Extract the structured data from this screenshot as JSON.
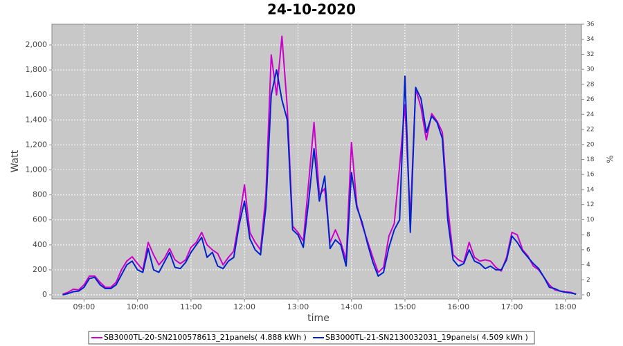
{
  "chart_data": {
    "type": "line",
    "title": "24-10-2020",
    "x_label": "time",
    "y_label": "Watt",
    "y2_label": "%",
    "x": [
      8.6,
      8.7,
      8.8,
      8.9,
      9.0,
      9.1,
      9.2,
      9.3,
      9.4,
      9.5,
      9.6,
      9.7,
      9.8,
      9.9,
      10.0,
      10.1,
      10.2,
      10.3,
      10.4,
      10.5,
      10.6,
      10.7,
      10.8,
      10.9,
      11.0,
      11.1,
      11.2,
      11.3,
      11.4,
      11.5,
      11.6,
      11.7,
      11.8,
      11.9,
      12.0,
      12.1,
      12.2,
      12.3,
      12.4,
      12.5,
      12.6,
      12.7,
      12.8,
      12.9,
      13.0,
      13.1,
      13.2,
      13.3,
      13.4,
      13.5,
      13.6,
      13.7,
      13.8,
      13.9,
      14.0,
      14.1,
      14.2,
      14.3,
      14.4,
      14.5,
      14.6,
      14.7,
      14.8,
      14.9,
      15.0,
      15.1,
      15.2,
      15.3,
      15.4,
      15.5,
      15.6,
      15.7,
      15.8,
      15.9,
      16.0,
      16.1,
      16.2,
      16.3,
      16.4,
      16.5,
      16.6,
      16.7,
      16.8,
      16.9,
      17.0,
      17.1,
      17.2,
      17.3,
      17.4,
      17.5,
      17.6,
      17.7,
      17.8,
      17.9,
      18.0,
      18.1,
      18.2
    ],
    "series": [
      {
        "name": "SB3000TL-20-SN2100578613_21panels( 4.888 kWh )",
        "color": "#cc00cc",
        "values": [
          5,
          20,
          45,
          40,
          80,
          150,
          150,
          100,
          60,
          60,
          100,
          200,
          270,
          305,
          250,
          200,
          420,
          320,
          240,
          290,
          370,
          280,
          250,
          280,
          380,
          420,
          500,
          400,
          360,
          330,
          240,
          300,
          350,
          600,
          880,
          500,
          420,
          360,
          800,
          1920,
          1600,
          2070,
          1500,
          550,
          500,
          430,
          900,
          1380,
          800,
          850,
          420,
          520,
          420,
          280,
          1220,
          720,
          560,
          430,
          300,
          180,
          220,
          470,
          570,
          1030,
          1520,
          600,
          1650,
          1500,
          1240,
          1450,
          1390,
          1300,
          700,
          320,
          280,
          260,
          420,
          300,
          270,
          280,
          270,
          220,
          190,
          300,
          500,
          480,
          360,
          310,
          230,
          200,
          140,
          80,
          40,
          30,
          25,
          20,
          5
        ]
      },
      {
        "name": "SB3000TL-21-SN2130032031_19panels( 4.509 kWh )",
        "color": "#0022cc",
        "values": [
          0,
          10,
          25,
          30,
          60,
          130,
          140,
          80,
          50,
          50,
          80,
          160,
          240,
          270,
          200,
          180,
          370,
          200,
          180,
          260,
          340,
          220,
          210,
          260,
          340,
          400,
          460,
          300,
          340,
          230,
          210,
          270,
          300,
          560,
          750,
          450,
          360,
          320,
          700,
          1600,
          1800,
          1560,
          1400,
          520,
          480,
          380,
          750,
          1170,
          750,
          950,
          370,
          440,
          400,
          230,
          980,
          700,
          580,
          410,
          260,
          150,
          180,
          380,
          520,
          600,
          1750,
          500,
          1660,
          1570,
          1300,
          1430,
          1380,
          1250,
          600,
          280,
          230,
          250,
          360,
          270,
          250,
          210,
          230,
          200,
          200,
          280,
          470,
          420,
          350,
          300,
          250,
          210,
          140,
          60,
          50,
          30,
          20,
          15,
          5
        ]
      }
    ],
    "xlim": [
      8.4,
      18.3
    ],
    "xticks": [
      {
        "value": 9,
        "label": "09:00"
      },
      {
        "value": 10,
        "label": "10:00"
      },
      {
        "value": 11,
        "label": "11:00"
      },
      {
        "value": 12,
        "label": "12:00"
      },
      {
        "value": 13,
        "label": "13:00"
      },
      {
        "value": 14,
        "label": "14:00"
      },
      {
        "value": 15,
        "label": "15:00"
      },
      {
        "value": 16,
        "label": "16:00"
      },
      {
        "value": 17,
        "label": "17:00"
      },
      {
        "value": 18,
        "label": "18:00"
      }
    ],
    "ylim": [
      -33,
      2166
    ],
    "yticks": [
      0,
      200,
      400,
      600,
      800,
      {
        "value": 1000,
        "label": "1,000"
      },
      {
        "value": 1200,
        "label": "1,200"
      },
      {
        "value": 1400,
        "label": "1,400"
      },
      {
        "value": 1600,
        "label": "1,600"
      },
      {
        "value": 1800,
        "label": "1,800"
      },
      {
        "value": 2000,
        "label": "2,000"
      }
    ],
    "y2lim": [
      -0.55,
      36
    ],
    "y2ticks": [
      0,
      2,
      4,
      6,
      8,
      10,
      12,
      14,
      16,
      18,
      20,
      22,
      24,
      26,
      28,
      30,
      32,
      34,
      36
    ],
    "grid": true
  }
}
